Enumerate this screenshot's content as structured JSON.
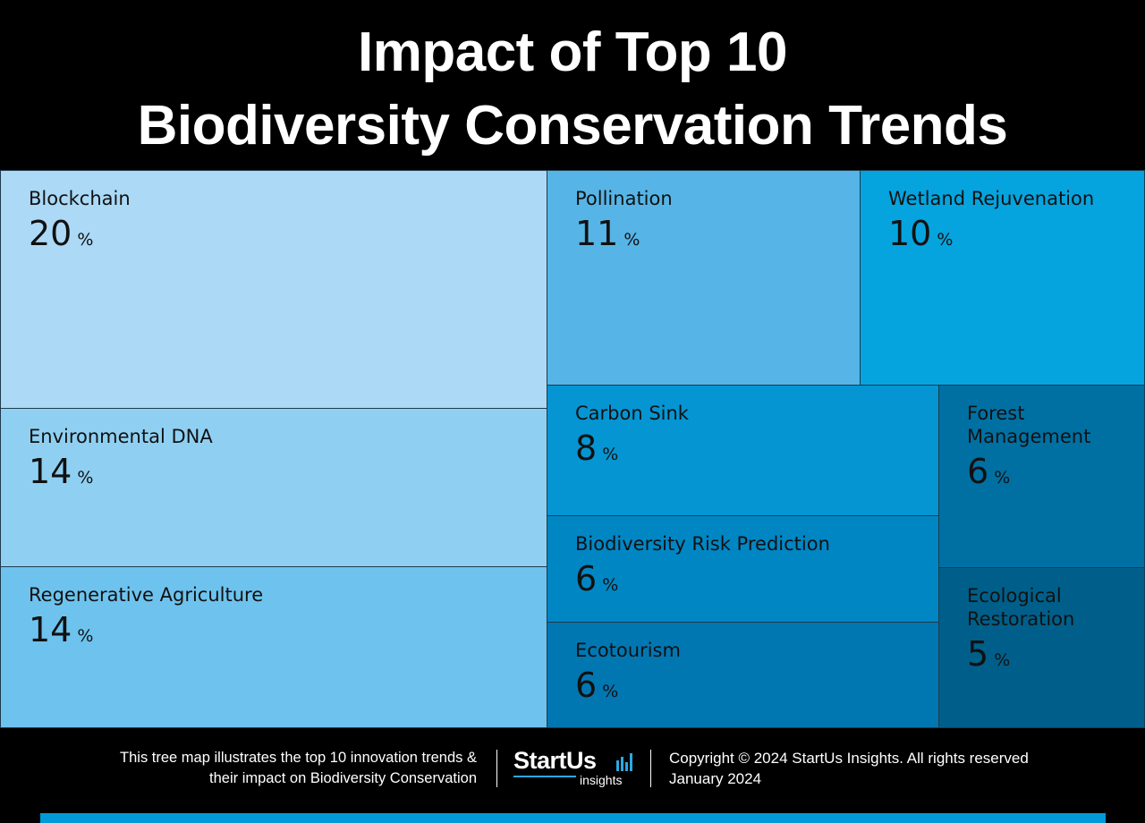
{
  "title_line1": "Impact of Top 10",
  "title_line2": "Biodiversity Conservation Trends",
  "chart_data": {
    "type": "treemap",
    "title": "Impact of Top 10 Biodiversity Conservation Trends",
    "unit": "%",
    "items": [
      {
        "label": "Blockchain",
        "value": 20,
        "color": "#abd9f6"
      },
      {
        "label": "Environmental DNA",
        "value": 14,
        "color": "#8fd0f2"
      },
      {
        "label": "Regenerative Agriculture",
        "value": 14,
        "color": "#6dc3ee"
      },
      {
        "label": "Pollination",
        "value": 11,
        "color": "#56b5e6"
      },
      {
        "label": "Wetland Rejuvenation",
        "value": 10,
        "color": "#05a4de"
      },
      {
        "label": "Carbon Sink",
        "value": 8,
        "color": "#0595d3"
      },
      {
        "label": "Biodiversity Risk Prediction",
        "value": 6,
        "color": "#0186c4"
      },
      {
        "label": "Ecotourism",
        "value": 6,
        "color": "#0177b2"
      },
      {
        "label": "Forest Management",
        "value": 6,
        "color": "#0070a3"
      },
      {
        "label": "Ecological Restoration",
        "value": 5,
        "color": "#005f8a"
      }
    ]
  },
  "footer": {
    "description_line1": "This tree map illustrates the top 10 innovation trends &",
    "description_line2": "their impact on Biodiversity Conservation",
    "logo_brand": "StartUs",
    "logo_sub": "insights",
    "copyright": "Copyright © 2024 StartUs Insights. All rights reserved",
    "date": "January 2024"
  }
}
